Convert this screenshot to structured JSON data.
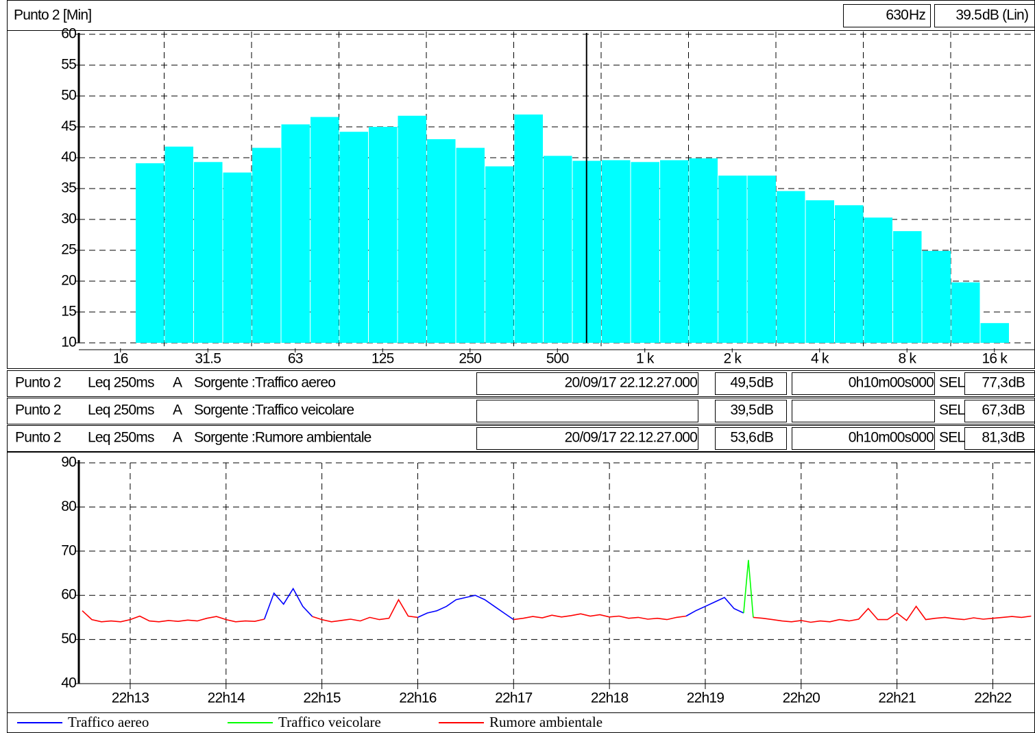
{
  "header": {
    "title": "Punto 2 [Min]",
    "cursor_freq": "630",
    "freq_unit": "Hz",
    "cursor_level": "39.5",
    "level_unit": "dB (Lin)",
    "cursor_color": "#00ffff"
  },
  "chart_data": [
    {
      "type": "bar",
      "categories": [
        "16",
        null,
        null,
        "31.5",
        null,
        null,
        "63",
        null,
        null,
        "125",
        null,
        null,
        "250",
        null,
        null,
        "500",
        null,
        null,
        "1 k",
        null,
        null,
        "2 k",
        null,
        null,
        "4 k",
        null,
        null,
        "8 k",
        null,
        null,
        "16 k"
      ],
      "values": [
        null,
        39.1,
        41.8,
        39.3,
        37.6,
        41.6,
        45.4,
        46.6,
        44.2,
        45.0,
        46.8,
        43.0,
        41.6,
        38.6,
        47.0,
        40.3,
        39.5,
        39.6,
        39.3,
        39.6,
        39.9,
        37.1,
        37.1,
        34.6,
        33.1,
        32.3,
        30.3,
        28.1,
        24.9,
        19.8,
        13.2
      ],
      "color": "#00ffff",
      "ylim": [
        10,
        60
      ],
      "yticks": [
        10,
        15,
        20,
        25,
        30,
        35,
        40,
        45,
        50,
        55,
        60
      ],
      "grid": true
    },
    {
      "type": "line",
      "x": [
        12.5,
        12.6,
        12.7,
        12.8,
        12.9,
        13.0,
        13.1,
        13.2,
        13.3,
        13.4,
        13.5,
        13.6,
        13.7,
        13.8,
        13.9,
        14.0,
        14.1,
        14.2,
        14.3,
        14.4,
        14.5,
        14.6,
        14.7,
        14.8,
        14.9,
        15.0,
        15.1,
        15.2,
        15.3,
        15.4,
        15.5,
        15.6,
        15.7,
        15.8,
        15.9,
        16.0,
        16.1,
        16.2,
        16.3,
        16.4,
        16.5,
        16.6,
        16.7,
        16.8,
        16.9,
        17.0,
        17.1,
        17.2,
        17.3,
        17.4,
        17.5,
        17.6,
        17.7,
        17.8,
        17.9,
        18.0,
        18.1,
        18.2,
        18.3,
        18.4,
        18.5,
        18.6,
        18.7,
        18.8,
        18.9,
        19.0,
        19.1,
        19.2,
        19.3,
        19.4,
        19.45,
        19.5,
        19.6,
        19.7,
        19.8,
        19.9,
        20.0,
        20.1,
        20.2,
        20.3,
        20.4,
        20.5,
        20.6,
        20.7,
        20.8,
        20.9,
        21.0,
        21.1,
        21.2,
        21.3,
        21.4,
        21.5,
        21.6,
        21.7,
        21.8,
        21.9,
        22.0,
        22.1,
        22.2,
        22.3,
        22.4
      ],
      "series": [
        {
          "name": "Traffico aereo",
          "color": "#0000ff",
          "values": [
            null,
            null,
            null,
            null,
            null,
            null,
            null,
            null,
            null,
            null,
            null,
            null,
            null,
            null,
            null,
            null,
            null,
            null,
            null,
            54.6,
            60.5,
            58.0,
            61.5,
            57.5,
            55.2,
            null,
            null,
            null,
            null,
            null,
            null,
            null,
            null,
            null,
            null,
            55.0,
            56.0,
            56.5,
            57.5,
            59.0,
            59.5,
            60.0,
            59.0,
            57.5,
            56.0,
            54.5,
            null,
            null,
            null,
            null,
            null,
            null,
            null,
            null,
            null,
            null,
            null,
            null,
            null,
            null,
            null,
            null,
            null,
            55.3,
            56.5,
            57.5,
            58.5,
            59.5,
            57.0,
            56.0,
            null,
            null,
            null,
            null,
            null,
            null,
            null,
            null,
            null,
            null,
            null,
            null,
            null,
            null,
            null,
            null,
            null,
            null,
            null,
            null,
            null,
            null,
            null,
            null,
            null,
            null,
            null,
            null,
            null,
            null,
            null
          ]
        },
        {
          "name": "Traffico veicolare",
          "color": "#00ff00",
          "values": [
            null,
            null,
            null,
            null,
            null,
            null,
            null,
            null,
            null,
            null,
            null,
            null,
            null,
            null,
            null,
            null,
            null,
            null,
            null,
            null,
            null,
            null,
            null,
            null,
            null,
            null,
            null,
            null,
            null,
            null,
            null,
            null,
            null,
            null,
            null,
            null,
            null,
            null,
            null,
            null,
            null,
            null,
            null,
            null,
            null,
            null,
            null,
            null,
            null,
            null,
            null,
            null,
            null,
            null,
            null,
            null,
            null,
            null,
            null,
            null,
            null,
            null,
            null,
            null,
            null,
            null,
            null,
            null,
            null,
            56.0,
            68.0,
            55.0,
            null,
            null,
            null,
            null,
            null,
            null,
            null,
            null,
            null,
            null,
            null,
            null,
            null,
            null,
            null,
            null,
            null,
            null,
            null,
            null,
            null,
            null,
            null,
            null,
            null,
            null,
            null,
            null,
            null
          ]
        },
        {
          "name": "Rumore ambientale",
          "color": "#ff0000",
          "values": [
            56.5,
            54.5,
            54.0,
            54.2,
            54.0,
            54.5,
            55.3,
            54.2,
            54.0,
            54.3,
            54.1,
            54.4,
            54.2,
            54.8,
            55.2,
            54.5,
            54.0,
            54.2,
            54.1,
            54.6,
            null,
            null,
            null,
            null,
            55.2,
            54.5,
            54.0,
            54.3,
            54.6,
            54.2,
            55.0,
            54.5,
            54.8,
            59.0,
            55.3,
            55.0,
            null,
            null,
            null,
            null,
            null,
            null,
            null,
            null,
            null,
            54.5,
            54.8,
            55.2,
            54.9,
            55.5,
            55.1,
            55.4,
            55.8,
            55.3,
            55.6,
            55.1,
            55.3,
            54.8,
            55.0,
            54.6,
            54.8,
            54.5,
            55.0,
            55.3,
            null,
            null,
            null,
            null,
            null,
            null,
            null,
            55.0,
            54.8,
            54.5,
            54.2,
            54.0,
            54.3,
            53.9,
            54.2,
            54.0,
            54.5,
            54.2,
            54.6,
            57.0,
            54.5,
            54.5,
            56.0,
            54.3,
            57.5,
            54.5,
            54.8,
            55.0,
            54.7,
            54.5,
            54.9,
            54.6,
            54.8,
            55.0,
            55.2,
            55.0,
            55.3
          ]
        }
      ],
      "xlim": [
        12.464,
        22.44
      ],
      "xticks": [
        {
          "value": 13,
          "label": "22h13"
        },
        {
          "value": 14,
          "label": "22h14"
        },
        {
          "value": 15,
          "label": "22h15"
        },
        {
          "value": 16,
          "label": "22h16"
        },
        {
          "value": 17,
          "label": "22h17"
        },
        {
          "value": 18,
          "label": "22h18"
        },
        {
          "value": 19,
          "label": "22h19"
        },
        {
          "value": 20,
          "label": "22h20"
        },
        {
          "value": 21,
          "label": "22h21"
        },
        {
          "value": 22,
          "label": "22h22"
        }
      ],
      "ylim": [
        40,
        90
      ],
      "yticks": [
        40,
        50,
        60,
        70,
        80,
        90
      ],
      "grid": true
    }
  ],
  "rows": [
    {
      "point": "Punto 2",
      "measure": "Leq 250ms",
      "weighting": "A",
      "source": "Sorgente :Traffico aereo",
      "date": "20/09/17 22.12.27.000",
      "date_color": "#00dd00",
      "level": "49,5",
      "level_unit": "dB",
      "duration": "0h10m00s000",
      "sel_label": "SEL",
      "sel": "77,3",
      "sel_unit": "dB",
      "color": "#0000ff",
      "sel_color": "#0000ff"
    },
    {
      "point": "Punto 2",
      "measure": "Leq 250ms",
      "weighting": "A",
      "source": "Sorgente :Traffico veicolare",
      "level": "39,5",
      "level_unit": "dB",
      "sel_label": "SEL",
      "sel": "67,3",
      "sel_unit": "dB",
      "color": "#00dd00",
      "sel_color": "#00dd00"
    },
    {
      "point": "Punto 2",
      "measure": "Leq 250ms",
      "weighting": "A",
      "source": "Sorgente :Rumore ambientale",
      "date": "20/09/17 22.12.27.000",
      "date_color": "#ff0000",
      "level": "53,6",
      "level_unit": "dB",
      "duration": "0h10m00s000",
      "sel_label": "SEL",
      "sel": "81,3",
      "sel_unit": "dB",
      "color": "#ff0000",
      "sel_color": "#ff0000"
    }
  ]
}
